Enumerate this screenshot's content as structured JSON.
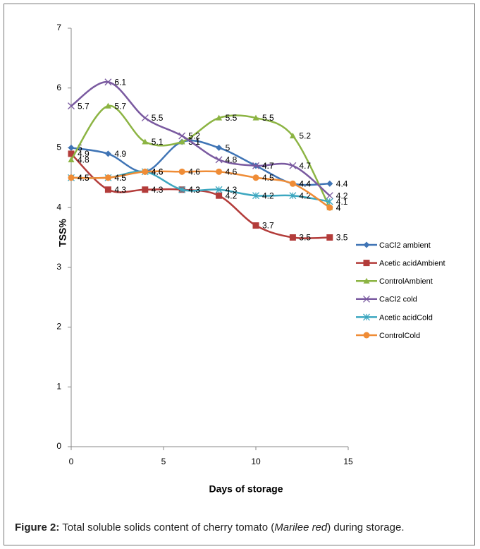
{
  "chart_data": {
    "type": "line",
    "x_label": "Days of storage",
    "y_label": "TSS%",
    "x": [
      0,
      2,
      4,
      6,
      8,
      10,
      12,
      14
    ],
    "xlim": [
      0,
      15
    ],
    "xticks": [
      0,
      5,
      10,
      15
    ],
    "ylim": [
      0,
      7
    ],
    "yticks": [
      0,
      1,
      2,
      3,
      4,
      5,
      6,
      7
    ],
    "grid": false,
    "legend": "right",
    "series": [
      {
        "name": "CaCl2 ambient",
        "color": "#3f74b5",
        "marker": "diamond",
        "values": [
          5,
          4.9,
          4.6,
          5.1,
          5,
          4.7,
          4.4,
          4.4
        ]
      },
      {
        "name": "Acetic acidAmbient",
        "color": "#b33c3a",
        "marker": "square",
        "values": [
          4.9,
          4.3,
          4.3,
          4.3,
          4.2,
          3.7,
          3.5,
          3.5
        ]
      },
      {
        "name": "ControlAmbient",
        "color": "#8cb443",
        "marker": "triangle",
        "values": [
          4.8,
          5.7,
          5.1,
          5.1,
          5.5,
          5.5,
          5.2,
          4
        ]
      },
      {
        "name": "CaCl2 cold",
        "color": "#7a5aa0",
        "marker": "x",
        "values": [
          5.7,
          6.1,
          5.5,
          5.2,
          4.8,
          4.7,
          4.7,
          4.2
        ]
      },
      {
        "name": "Acetic acidCold",
        "color": "#3ca7c0",
        "marker": "star",
        "values": [
          4.5,
          4.5,
          4.6,
          4.3,
          4.3,
          4.2,
          4.2,
          4.1
        ]
      },
      {
        "name": "ControlCold",
        "color": "#ef8c36",
        "marker": "circle",
        "values": [
          4.5,
          4.5,
          4.6,
          4.6,
          4.6,
          4.5,
          4.4,
          4
        ]
      }
    ]
  },
  "caption": {
    "label": "Figure 2:",
    "text": " Total soluble solids content of cherry tomato (",
    "italic": "Marilee red",
    "text_end": ") during storage."
  }
}
